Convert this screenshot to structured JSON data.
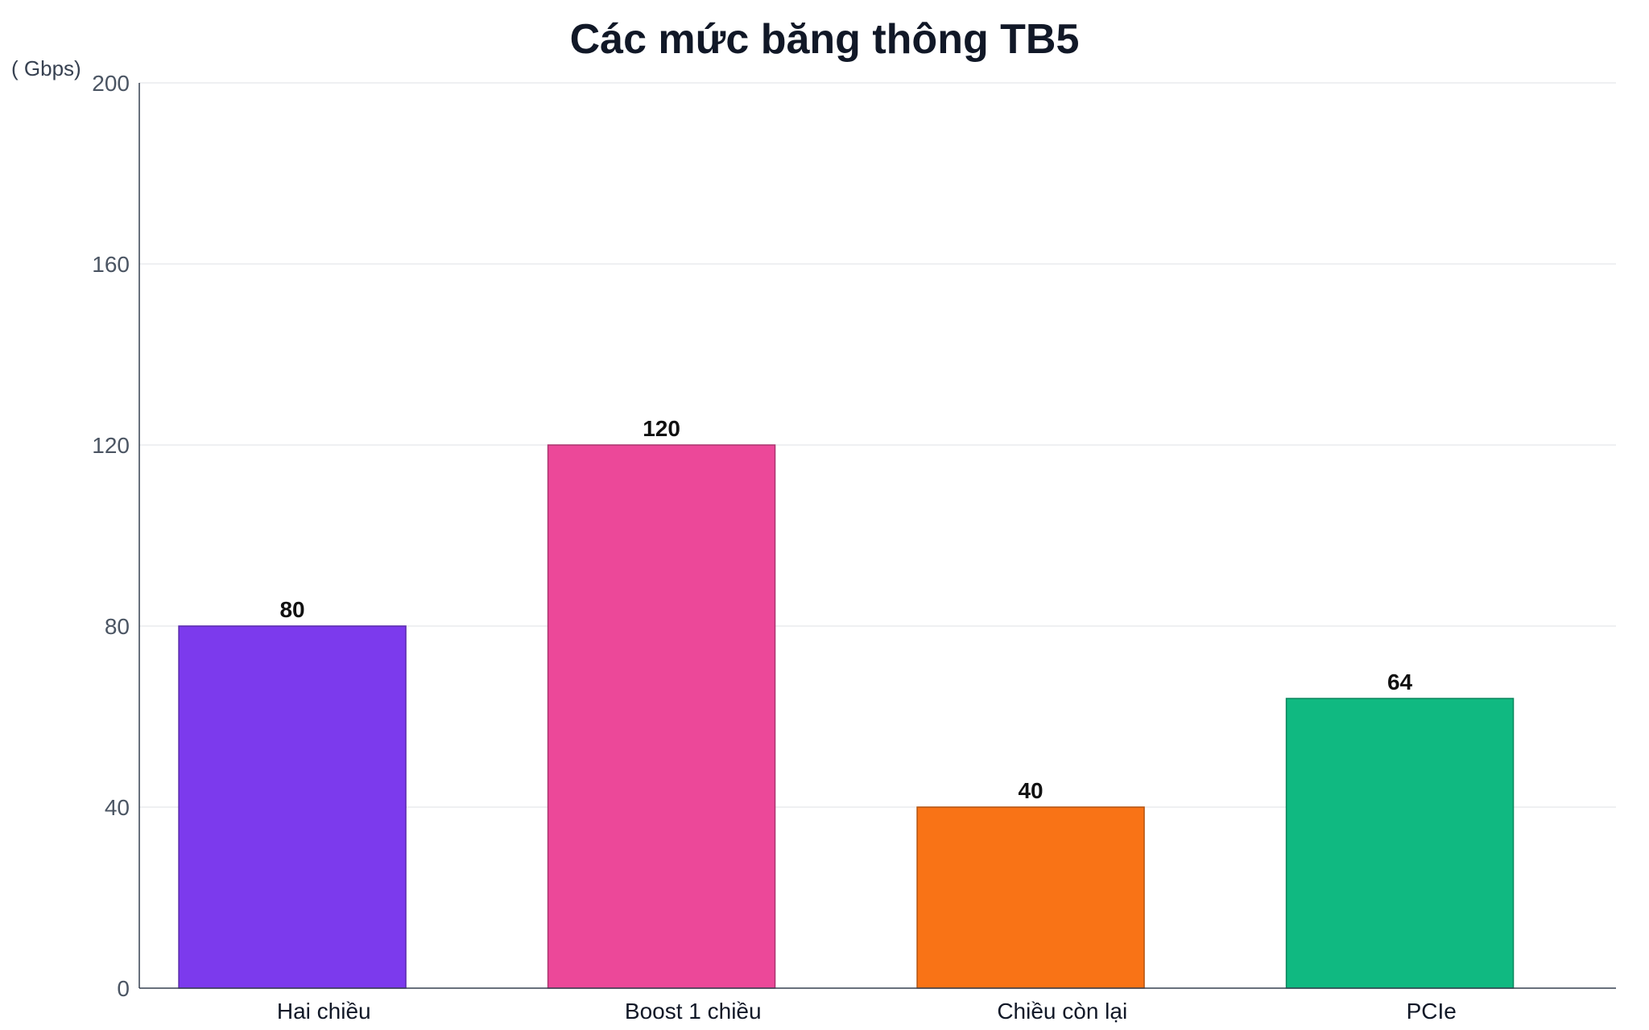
{
  "chart_data": {
    "type": "bar",
    "title": "Các mức băng thông TB5",
    "xlabel": "",
    "ylabel": "( Gbps)",
    "categories": [
      "Hai chiều",
      "Boost 1 chiều",
      "Chiều còn lại",
      "PCIe"
    ],
    "values": [
      80,
      120,
      40,
      64
    ],
    "colors": [
      "#7c3aed",
      "#ec4899",
      "#f97316",
      "#10b981"
    ],
    "ylim": [
      0,
      200
    ],
    "yticks": [
      0,
      40,
      80,
      120,
      160,
      200
    ],
    "grid": true,
    "legend": "none",
    "value_labels": true
  }
}
